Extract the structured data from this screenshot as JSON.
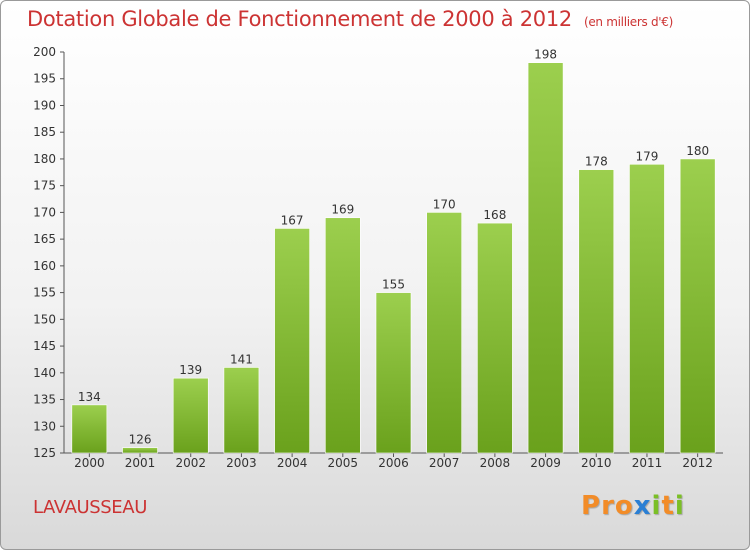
{
  "header": {
    "title": "Dotation Globale de Fonctionnement de 2000 à 2012",
    "unit": "(en milliers d'€)"
  },
  "footer": {
    "commune": "LAVAUSSEAU",
    "logo": "Proxiti"
  },
  "colors": {
    "title": "#cc3333",
    "bar_top": "#9ccf4e",
    "bar_bottom": "#6aa11c",
    "logo_letters": [
      "#f28c28",
      "#f28c28",
      "#f28c28",
      "#2a7fd4",
      "#7bbf26",
      "#f28c28",
      "#7bbf26"
    ]
  },
  "chart_data": {
    "type": "bar",
    "categories": [
      "2000",
      "2001",
      "2002",
      "2003",
      "2004",
      "2005",
      "2006",
      "2007",
      "2008",
      "2009",
      "2010",
      "2011",
      "2012"
    ],
    "values": [
      134,
      126,
      139,
      141,
      167,
      169,
      155,
      170,
      168,
      198,
      178,
      179,
      180
    ],
    "ylim": [
      125,
      200
    ],
    "yticks": [
      125,
      130,
      135,
      140,
      145,
      150,
      155,
      160,
      165,
      170,
      175,
      180,
      185,
      190,
      195,
      200
    ],
    "grid": false,
    "legend": "none"
  }
}
